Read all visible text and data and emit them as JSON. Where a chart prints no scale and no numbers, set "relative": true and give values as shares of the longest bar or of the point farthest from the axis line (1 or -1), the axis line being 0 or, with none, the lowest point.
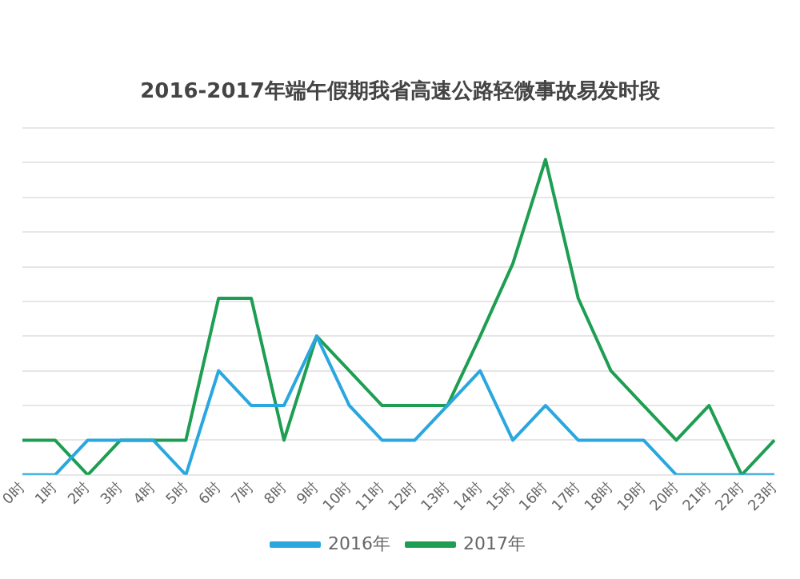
{
  "chart_data": {
    "type": "line",
    "title": "2016-2017年端午假期我省高速公路轻微事故易发时段",
    "categories": [
      "0时",
      "1时",
      "2时",
      "3时",
      "4时",
      "5时",
      "6时",
      "7时",
      "8时",
      "9时",
      "10时",
      "11时",
      "12时",
      "13时",
      "14时",
      "15时",
      "16时",
      "17时",
      "18时",
      "19时",
      "20时",
      "21时",
      "22时",
      "23时"
    ],
    "relative": true,
    "series": [
      {
        "name": "2016年",
        "color": "#2aa7df",
        "values": [
          0,
          0,
          0.11,
          0.11,
          0.11,
          0,
          0.33,
          0.22,
          0.22,
          0.44,
          0.22,
          0.11,
          0.11,
          0.22,
          0.33,
          0.11,
          0.22,
          0.11,
          0.11,
          0.11,
          0,
          0,
          0,
          0
        ]
      },
      {
        "name": "2017年",
        "color": "#1e9e52",
        "values": [
          0.11,
          0.11,
          0,
          0.11,
          0.11,
          0.11,
          0.56,
          0.56,
          0.11,
          0.44,
          0.33,
          0.22,
          0.22,
          0.22,
          0.44,
          0.67,
          1,
          0.56,
          0.33,
          0.22,
          0.11,
          0.22,
          0,
          0.11
        ]
      }
    ],
    "grid": "y",
    "legend": "bottom",
    "marker": "none",
    "line_style": "solid"
  }
}
